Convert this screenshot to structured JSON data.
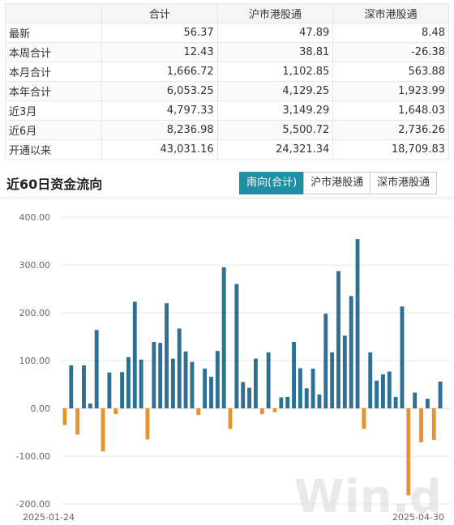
{
  "table": {
    "headers": [
      "",
      "合计",
      "沪市港股通",
      "深市港股通"
    ],
    "rows": [
      {
        "label": "最新",
        "total": "56.37",
        "sh": "47.89",
        "sz": "8.48"
      },
      {
        "label": "本周合计",
        "total": "12.43",
        "sh": "38.81",
        "sz": "-26.38"
      },
      {
        "label": "本月合计",
        "total": "1,666.72",
        "sh": "1,102.85",
        "sz": "563.88"
      },
      {
        "label": "本年合计",
        "total": "6,053.25",
        "sh": "4,129.25",
        "sz": "1,923.99"
      },
      {
        "label": "近3月",
        "total": "4,797.33",
        "sh": "3,149.29",
        "sz": "1,648.03"
      },
      {
        "label": "近6月",
        "total": "8,236.98",
        "sh": "5,500.72",
        "sz": "2,736.26"
      },
      {
        "label": "开通以来",
        "total": "43,031.16",
        "sh": "24,321.34",
        "sz": "18,709.83"
      }
    ]
  },
  "section_title": "近60日资金流向",
  "tabs": [
    "南向(合计)",
    "沪市港股通",
    "深市港股通"
  ],
  "active_tab": 0,
  "watermark": "Win.d",
  "colors": {
    "positive": "#2e6f94",
    "negative": "#e8922b",
    "active_tab": "#1f8fa6",
    "grid": "#e5e5e5"
  },
  "chart_data": {
    "type": "bar",
    "title": "",
    "xlabel": "",
    "ylabel": "",
    "ylim": [
      -200,
      400
    ],
    "yticks": [
      "400.00",
      "300.00",
      "200.00",
      "100.00",
      "0.00",
      "-100.00",
      "-200.00"
    ],
    "x_start_label": "2025-01-24",
    "x_end_label": "2025-04-30",
    "grid": true,
    "values": [
      -35,
      90,
      -55,
      90,
      10,
      164,
      -90,
      75,
      -12,
      76,
      107,
      223,
      102,
      -65,
      139,
      137,
      220,
      104,
      167,
      119,
      97,
      -14,
      83,
      66,
      120,
      295,
      -43,
      260,
      55,
      43,
      104,
      -12,
      117,
      -8,
      23,
      24,
      139,
      84,
      42,
      83,
      29,
      198,
      117,
      287,
      152,
      235,
      354,
      -43,
      117,
      58,
      71,
      77,
      24,
      213,
      -182,
      33,
      -71,
      20,
      -66,
      56
    ]
  }
}
